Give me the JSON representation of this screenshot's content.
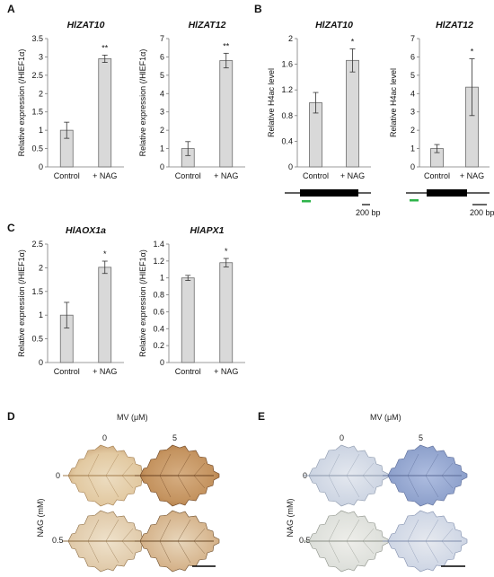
{
  "panels": {
    "A": "A",
    "B": "B",
    "C": "C",
    "D": "D",
    "E": "E"
  },
  "chart_data": [
    {
      "type": "bar",
      "panel": "A",
      "title": "HlZAT10",
      "ylabel": "Relative expression (/HlEF1α)",
      "categories": [
        "Control",
        "+ NAG"
      ],
      "values": [
        1.0,
        2.95
      ],
      "errors": [
        0.22,
        0.1
      ],
      "significance": [
        "",
        "**"
      ],
      "ylim": [
        0,
        3.5
      ],
      "yticks": [
        "0",
        "0.5",
        "1",
        "1.5",
        "2",
        "2.5",
        "3",
        "3.5"
      ]
    },
    {
      "type": "bar",
      "panel": "A",
      "title": "HlZAT12",
      "ylabel": "Relative expression (/HlEF1α)",
      "categories": [
        "Control",
        "+ NAG"
      ],
      "values": [
        1.0,
        5.8
      ],
      "errors": [
        0.38,
        0.4
      ],
      "significance": [
        "",
        "**"
      ],
      "ylim": [
        0,
        7
      ],
      "yticks": [
        "0",
        "1",
        "2",
        "3",
        "4",
        "5",
        "6",
        "7"
      ]
    },
    {
      "type": "bar",
      "panel": "B",
      "title": "HlZAT10",
      "ylabel": "Relative H4ac level",
      "categories": [
        "Control",
        "+ NAG"
      ],
      "values": [
        1.0,
        1.66
      ],
      "errors": [
        0.16,
        0.18
      ],
      "significance": [
        "",
        "*"
      ],
      "ylim": [
        0,
        2
      ],
      "yticks": [
        "0",
        "0.4",
        "0.8",
        "1.2",
        "1.6",
        "2"
      ],
      "gene_scale": "200 bp"
    },
    {
      "type": "bar",
      "panel": "B",
      "title": "HlZAT12",
      "ylabel": "Relative H4ac level",
      "categories": [
        "Control",
        "+ NAG"
      ],
      "values": [
        1.0,
        4.35
      ],
      "errors": [
        0.22,
        1.55
      ],
      "significance": [
        "",
        "*"
      ],
      "ylim": [
        0,
        7
      ],
      "yticks": [
        "0",
        "1",
        "2",
        "3",
        "4",
        "5",
        "6",
        "7"
      ],
      "gene_scale": "200 bp"
    },
    {
      "type": "bar",
      "panel": "C",
      "title": "HlAOX1a",
      "ylabel": "Relative expression (/HlEF1α)",
      "categories": [
        "Control",
        "+ NAG"
      ],
      "values": [
        1.0,
        2.01
      ],
      "errors": [
        0.27,
        0.13
      ],
      "significance": [
        "",
        "*"
      ],
      "ylim": [
        0,
        2.5
      ],
      "yticks": [
        "0",
        "0.5",
        "1",
        "1.5",
        "2",
        "2.5"
      ]
    },
    {
      "type": "bar",
      "panel": "C",
      "title": "HlAPX1",
      "ylabel": "Relative expression (/HlEF1α)",
      "categories": [
        "Control",
        "+ NAG"
      ],
      "values": [
        1.0,
        1.18
      ],
      "errors": [
        0.03,
        0.05
      ],
      "significance": [
        "",
        "*"
      ],
      "ylim": [
        0,
        1.4
      ],
      "yticks": [
        "0",
        "0.2",
        "0.4",
        "0.6",
        "0.8",
        "1",
        "1.2",
        "1.4"
      ]
    }
  ],
  "leaf_panels": {
    "mv_label": "MV (μM)",
    "mv_levels": [
      "0",
      "5"
    ],
    "nag_label": "NAG (mM)",
    "nag_levels": [
      "0",
      "0.5"
    ],
    "D_stain_color": "#b07a45",
    "E_stain_color": "#7e93c0"
  }
}
